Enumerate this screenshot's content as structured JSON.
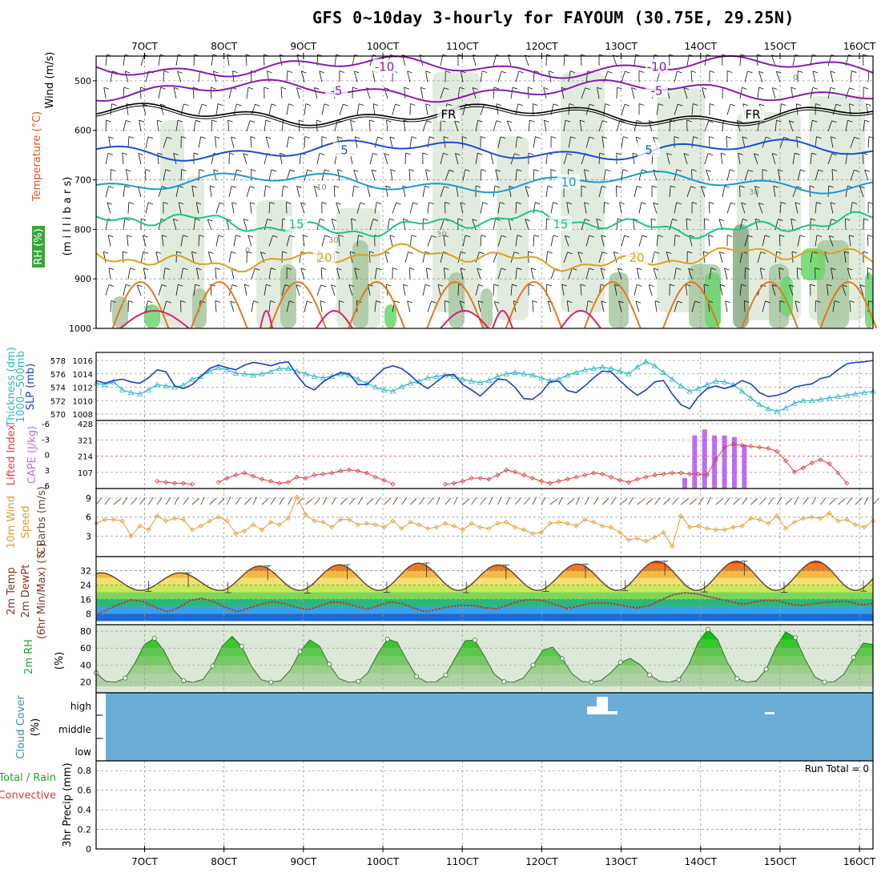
{
  "title": "GFS 0~10day 3-hourly for FAYOUM (30.75E, 29.25N)",
  "colors": {
    "bg": "#ffffff",
    "frame": "#000000",
    "grid": "#9a9a9a",
    "rh_light": "#dde9d8",
    "rh_mid": "#a8c8a0",
    "rh_dark": "#8aaa86",
    "rh_green": "#6ad66a",
    "thickness": "#2ab5c0",
    "slp": "#1a3fcf",
    "lifted": "#e03c3c",
    "cape": "#bb6cf0",
    "wind10": "#e89a2e",
    "barb": "#6b4a2e",
    "dewpt": "#7a3a2a",
    "rh2m": "#2aa02a",
    "cloud": "#6aaed8"
  },
  "chart_data": {
    "type": "multi-panel meteogram",
    "time_axis": {
      "labels": [
        "7OCT",
        "8OCT",
        "9OCT",
        "10OCT",
        "11OCT",
        "12OCT",
        "13OCT",
        "14OCT",
        "15OCT",
        "16OCT"
      ],
      "start_day": 6.39,
      "end_day": 16.17
    },
    "panels": [
      {
        "id": "upper_air",
        "ylabels": [
          "Wind (m/s)",
          "Temperature (°C)",
          "RH (%)",
          "(m i l l i b a r s)"
        ],
        "y_ticks": [
          "500",
          "600",
          "700",
          "800",
          "900",
          "1000"
        ],
        "contours": [
          {
            "name": "-10",
            "color": "#8a1ab0",
            "pressure": 472,
            "labels": [
              "-10",
              "-10"
            ]
          },
          {
            "name": "-5",
            "color": "#8a1ab0",
            "pressure": 520,
            "labels": [
              "-5",
              "-5"
            ]
          },
          {
            "name": "FR",
            "color": "#000000",
            "pressure": 568,
            "labels": [
              "FR",
              "FR"
            ]
          },
          {
            "name": "5",
            "color": "#1a4cd6",
            "pressure": 640,
            "labels": [
              "5",
              "5"
            ]
          },
          {
            "name": "10",
            "color": "#1a9ad6",
            "pressure": 705,
            "labels": [
              "10"
            ]
          },
          {
            "name": "15",
            "color": "#1ac48a",
            "pressure": 790,
            "labels": [
              "15",
              "15"
            ]
          },
          {
            "name": "20",
            "color": "#e0a020",
            "pressure": 858,
            "labels": [
              "20",
              "20"
            ]
          }
        ],
        "rh_labels": [
          "30",
          "30",
          "30",
          "10",
          "0",
          "0"
        ]
      },
      {
        "id": "slp_thickness",
        "ylabels": [
          "Thickness (dm)",
          "1000~500mb",
          "SLP (mb)"
        ],
        "left_ticks": [
          "578",
          "576",
          "574",
          "572",
          "570"
        ],
        "right_ticks": [
          "1016",
          "1014",
          "1012",
          "1010",
          "1008"
        ],
        "slp": [
          1013,
          1012.6,
          1013,
          1013.2,
          1012.8,
          1012.6,
          1013.4,
          1014.6,
          1014.3,
          1012.2,
          1011.8,
          1012.4,
          1013.6,
          1014.8,
          1015.3,
          1014.9,
          1014.6,
          1015.3,
          1015.7,
          1015.5,
          1015.2,
          1015.6,
          1015.8,
          1013.8,
          1012.2,
          1011.6,
          1012.8,
          1013.6,
          1014.2,
          1014.0,
          1012.4,
          1012.4,
          1013.6,
          1014.8,
          1015.2,
          1014.8,
          1013.8,
          1012.6,
          1011.8,
          1012.8,
          1013.8,
          1013.9,
          1012.4,
          1011.6,
          1010.7,
          1011.9,
          1013.2,
          1013.1,
          1012.0,
          1010.3,
          1010.2,
          1011.2,
          1012.8,
          1012.9,
          1011.5,
          1011.2,
          1012.2,
          1013.4,
          1014.4,
          1014.3,
          1013.0,
          1011.8,
          1010.8,
          1011.6,
          1012.8,
          1013.0,
          1011.0,
          1009.4,
          1008.8,
          1010.6,
          1011.8,
          1012.2,
          1011.8,
          1012.2,
          1013.0,
          1012.5,
          1011.2,
          1010.6,
          1010.8,
          1011.2,
          1012.0,
          1012.3,
          1012.5,
          1013.3,
          1013.6,
          1014.6,
          1015.5,
          1015.7,
          1015.8,
          1016.0
        ],
        "thickness": [
          574.6,
          574.4,
          574.8,
          573.6,
          573.2,
          573.0,
          573.6,
          574.4,
          574.2,
          574.0,
          574.3,
          575.2,
          575.6,
          576.4,
          576.9,
          576.6,
          576.1,
          576.0,
          575.8,
          576.0,
          576.3,
          576.8,
          576.8,
          576.4,
          576.0,
          575.6,
          575.4,
          575.6,
          576.0,
          575.8,
          575.2,
          574.6,
          574.0,
          573.6,
          573.4,
          574.1,
          574.6,
          574.9,
          575.4,
          575.6,
          575.8,
          575.6,
          575.2,
          574.9,
          574.7,
          575.0,
          575.6,
          576.0,
          576.2,
          576.0,
          575.8,
          575.4,
          575.0,
          575.2,
          575.8,
          576.2,
          576.6,
          576.8,
          577.0,
          576.8,
          576.4,
          576.0,
          577.0,
          577.8,
          577.2,
          576.2,
          575.2,
          574.2,
          573.4,
          573.8,
          574.4,
          574.9,
          574.8,
          574.4,
          573.4,
          572.4,
          571.4,
          570.8,
          570.4,
          570.9,
          571.6,
          572.0,
          572.0,
          572.2,
          572.4,
          572.6,
          572.8,
          573.0,
          573.2,
          573.4
        ]
      },
      {
        "id": "cape_lifted",
        "ylabels": [
          "Lifted Index",
          "CAPE (J/kg)"
        ],
        "left_ticks": [
          "-6",
          "-3",
          "0",
          "3",
          "6"
        ],
        "right_ticks": [
          "428",
          "321",
          "214",
          "107"
        ],
        "lifted_index": [
          null,
          null,
          null,
          null,
          null,
          null,
          null,
          5.2,
          5.4,
          5.6,
          5.6,
          5.8,
          null,
          null,
          5.4,
          4.6,
          4.0,
          3.6,
          4.2,
          4.8,
          5.2,
          5.6,
          5.4,
          4.4,
          4.6,
          4.0,
          3.8,
          3.6,
          3.2,
          3.0,
          3.2,
          3.6,
          4.4,
          5.0,
          5.8,
          null,
          null,
          null,
          null,
          null,
          5.8,
          5.6,
          5.2,
          4.6,
          4.6,
          4.8,
          4.0,
          3.0,
          3.4,
          4.0,
          4.6,
          5.2,
          5.6,
          5.2,
          4.8,
          4.4,
          4.0,
          3.6,
          3.8,
          4.4,
          5.0,
          5.4,
          4.8,
          4.4,
          4.0,
          3.8,
          3.6,
          3.6,
          3.8,
          3.8,
          4.0,
          1.0,
          -1.4,
          -2.0,
          -1.8,
          -1.6,
          -1.4,
          -1.2,
          -0.6,
          1.2,
          3.4,
          2.6,
          1.6,
          1.0,
          1.8,
          3.6,
          5.6,
          null,
          null,
          null
        ],
        "cape_bars": [
          70,
          350,
          390,
          350,
          350,
          340,
          290
        ]
      },
      {
        "id": "wind10",
        "ylabels": [
          "10m Wind",
          "Speed",
          "& Barbs (m/s)"
        ],
        "left_ticks": [
          "9",
          "6",
          "3"
        ],
        "speed": [
          5.0,
          5.6,
          5.6,
          5.4,
          3.0,
          4.6,
          4.0,
          6.2,
          5.4,
          5.8,
          5.6,
          4.0,
          4.6,
          5.4,
          6.0,
          5.4,
          3.4,
          3.8,
          4.8,
          4.0,
          5.2,
          4.8,
          5.8,
          9.2,
          6.4,
          5.4,
          5.2,
          4.4,
          5.6,
          5.6,
          4.8,
          5.0,
          4.8,
          4.4,
          5.4,
          4.2,
          5.2,
          4.8,
          4.2,
          4.4,
          5.0,
          4.6,
          4.0,
          5.0,
          4.4,
          4.2,
          5.0,
          5.2,
          4.4,
          4.0,
          3.4,
          3.6,
          5.0,
          5.2,
          5.0,
          4.6,
          5.6,
          5.2,
          4.6,
          4.4,
          3.6,
          2.4,
          2.6,
          2.2,
          2.8,
          3.6,
          1.4,
          6.2,
          4.4,
          4.6,
          4.2,
          4.0,
          4.0,
          4.4,
          4.6,
          5.8,
          5.6,
          5.0,
          6.2,
          4.2,
          5.2,
          5.8,
          6.0,
          5.8,
          6.6,
          5.4,
          5.6,
          4.8,
          4.4,
          5.4
        ]
      },
      {
        "id": "temperature",
        "ylabels": [
          "2m Temp",
          "2m DewPt",
          "(6hr Min/Max) (°C)"
        ],
        "left_ticks": [
          "32",
          "24",
          "16",
          "8"
        ],
        "temp_max": [
          30.8,
          34.6,
          35.3,
          36.2,
          35.2,
          35.7,
          37.3,
          37.3
        ],
        "temp_min": [
          20.4,
          19.8,
          19.6,
          20.0,
          19.8,
          20.4,
          20.8,
          20.2,
          20.0,
          20.6
        ],
        "dewpt": [
          7.6,
          10.6,
          13.4,
          15.8,
          14.8,
          11.8,
          9.2,
          11.4,
          15.6,
          16.6,
          14.8,
          11.6,
          9.2,
          11.2,
          13.4,
          14.8,
          13.8,
          11.6,
          10.4,
          12.4,
          14.6,
          14.2,
          12.4,
          10.6,
          12.6,
          14.6,
          13.8,
          11.2,
          9.2,
          10.6,
          12.0,
          12.6,
          12.8,
          11.4,
          10.8,
          13.0,
          15.2,
          16.0,
          15.4,
          13.2,
          11.0,
          12.4,
          14.0,
          14.2,
          13.6,
          12.2,
          11.4,
          12.6,
          15.8,
          18.6,
          19.8,
          19.2,
          17.6,
          16.2,
          14.6,
          13.4,
          14.8,
          15.6,
          15.2,
          13.4,
          12.6,
          13.8,
          14.4,
          15.0,
          14.6,
          13.0,
          13.8
        ]
      },
      {
        "id": "rh2m",
        "ylabels": [
          "2m RH",
          "(%)"
        ],
        "left_ticks": [
          "80",
          "60",
          "40",
          "20"
        ],
        "peaks": [
          72,
          74,
          70,
          72,
          72,
          62,
          48,
          82,
          80,
          68
        ]
      },
      {
        "id": "cloud",
        "ylabels": [
          "Cloud Cover",
          "(%)"
        ],
        "left_ticks": [
          "high",
          "middle",
          "low"
        ]
      },
      {
        "id": "precip",
        "ylabels": [
          "Total / Rain",
          "Convective",
          "3hr Precip (mm)"
        ],
        "left_ticks": [
          "0.8",
          "0.6",
          "0.4",
          "0.2",
          "0"
        ],
        "run_total": "Run Total = 0"
      }
    ]
  }
}
